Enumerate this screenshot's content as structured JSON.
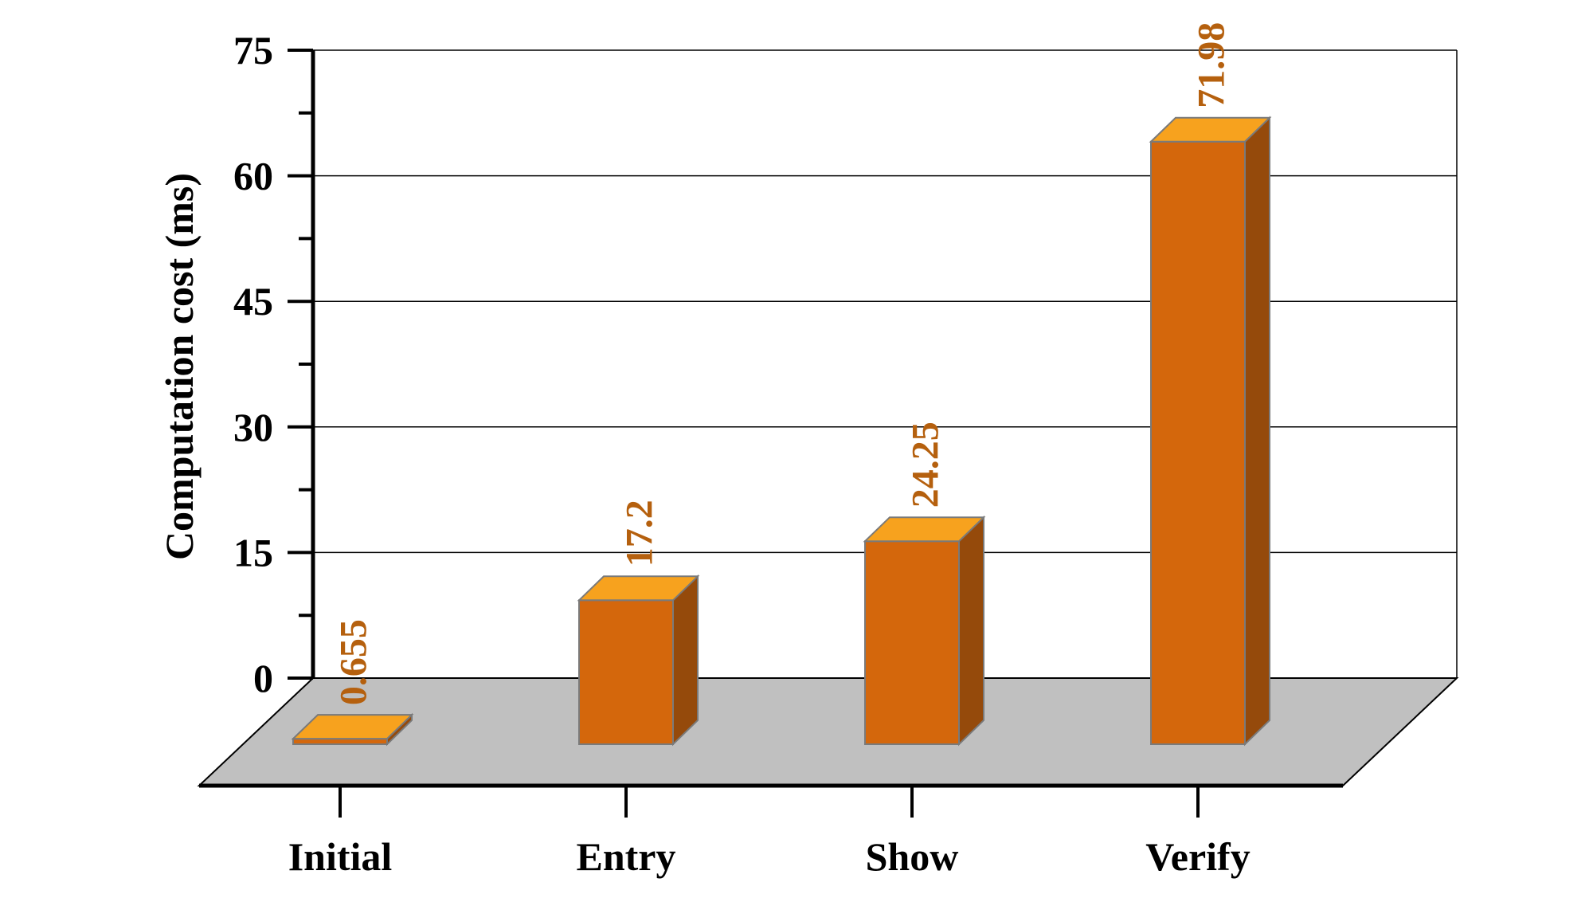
{
  "chart_data": {
    "type": "bar",
    "style": "3d",
    "categories": [
      "Initial",
      "Entry",
      "Show",
      "Verify"
    ],
    "values": [
      0.655,
      17.2,
      24.25,
      71.98
    ],
    "value_labels": [
      "0.655",
      "17.2",
      "24.25",
      "71.98"
    ],
    "title": "",
    "xlabel": "",
    "ylabel": "Computation cost (ms)",
    "ylim": [
      0,
      75
    ],
    "yticks": [
      0,
      15,
      30,
      45,
      60,
      75
    ],
    "grid": true,
    "colors": {
      "bar_front": "#d4670c",
      "bar_top": "#f7a21e",
      "bar_side": "#954a0b",
      "bar_edge": "#7a7a7a",
      "floor": "#c0c0c0",
      "value_label": "#b5600e",
      "grid": "#000000"
    }
  }
}
